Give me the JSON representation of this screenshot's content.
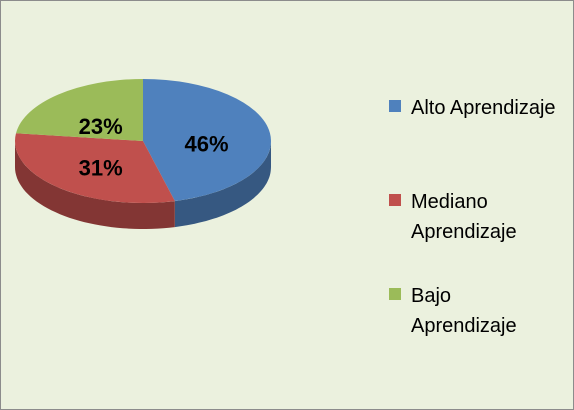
{
  "chart_data": {
    "type": "pie",
    "categories": [
      "Alto Aprendizaje",
      "Mediano Aprendizaje",
      "Bajo Aprendizaje"
    ],
    "values": [
      46,
      31,
      23
    ],
    "value_labels": [
      "46%",
      "31%",
      "23%"
    ],
    "colors": [
      "#4f81bd",
      "#c0504d",
      "#9bbb59"
    ],
    "legend": "right"
  }
}
